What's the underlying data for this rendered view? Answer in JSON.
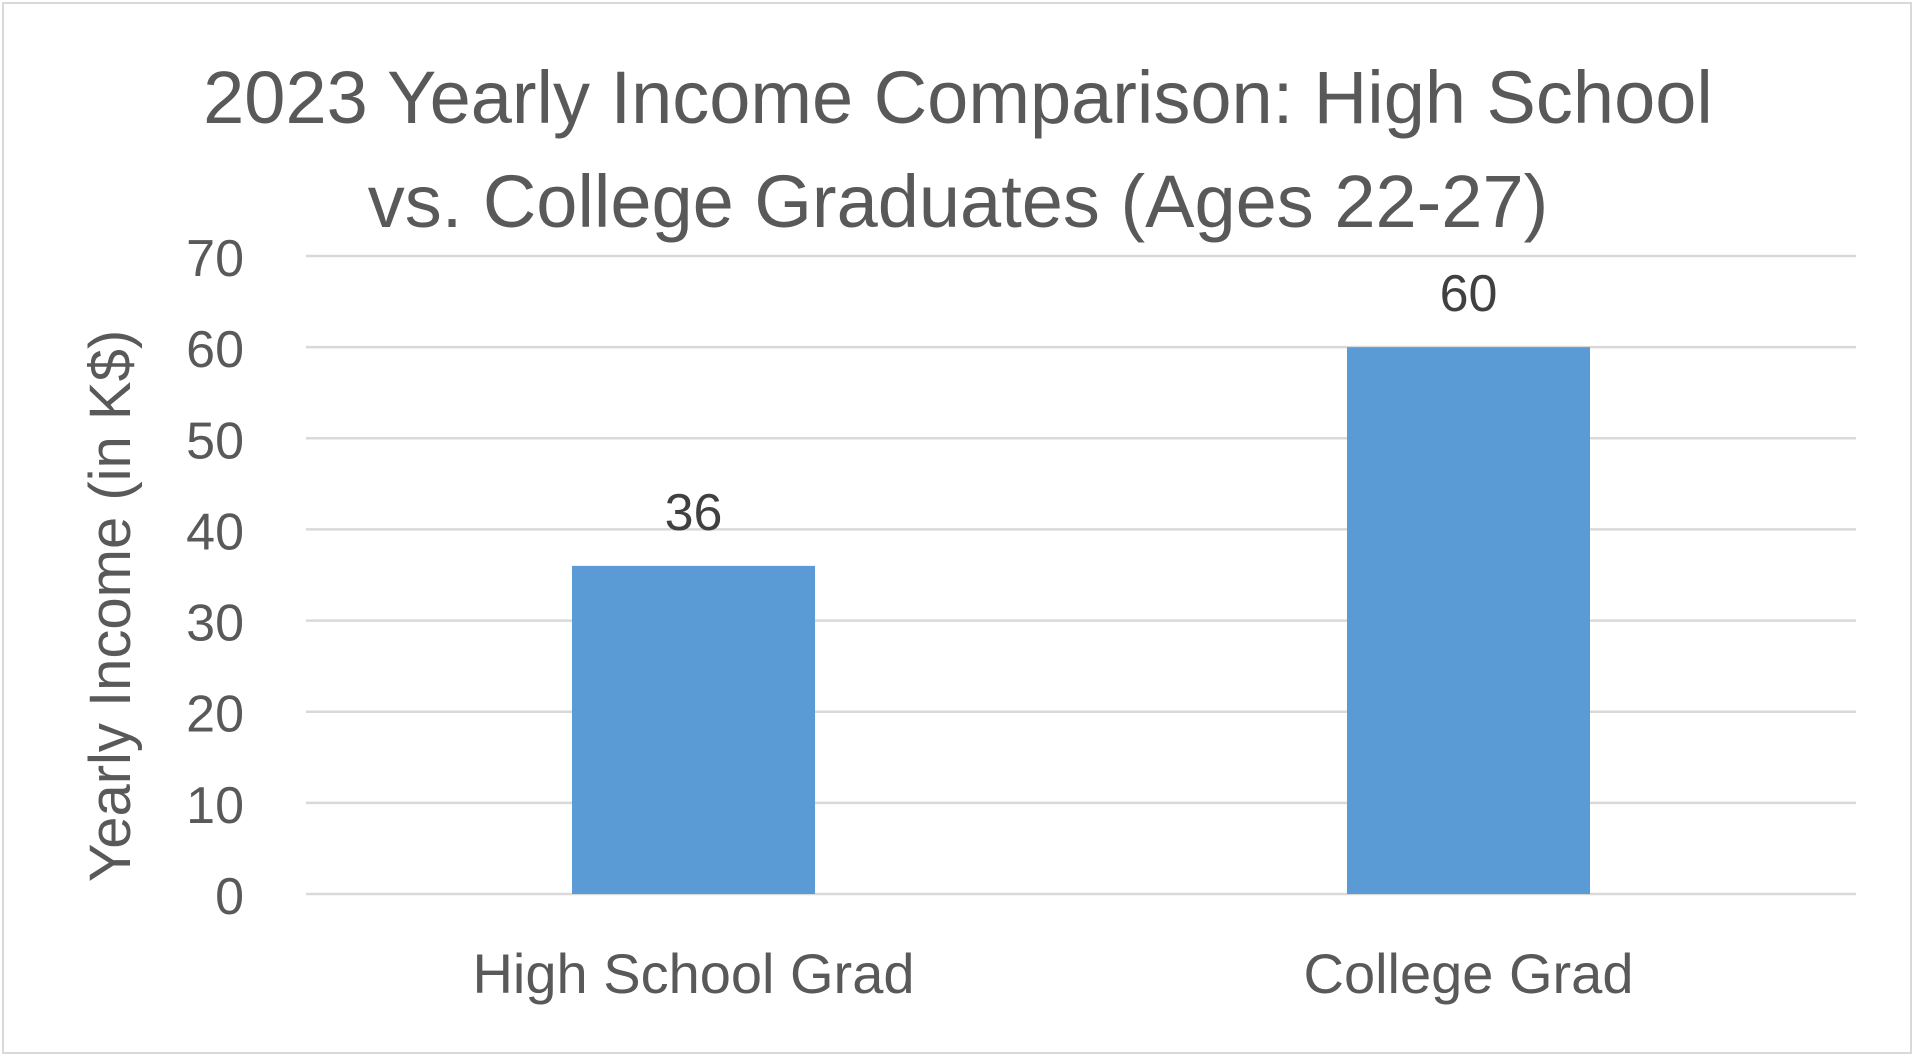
{
  "chart_data": {
    "type": "bar",
    "title": "2023 Yearly Income Comparison: High School vs. College Graduates (Ages 22-27)",
    "xlabel": "",
    "ylabel": "Yearly Income (in K$)",
    "categories": [
      "High School Grad",
      "College Grad"
    ],
    "values": [
      36,
      60
    ],
    "data_labels": [
      "36",
      "60"
    ],
    "ylim": [
      0,
      70
    ],
    "yticks": [
      0,
      10,
      20,
      30,
      40,
      50,
      60,
      70
    ],
    "ytick_labels": [
      "0",
      "10",
      "20",
      "30",
      "40",
      "50",
      "60",
      "70"
    ],
    "grid": true,
    "legend": "none",
    "colors": {
      "bar": "#5b9bd5",
      "text": "#595959",
      "data_label": "#404040",
      "grid": "#d9d9d9",
      "frame": "#d9d9d9"
    }
  }
}
